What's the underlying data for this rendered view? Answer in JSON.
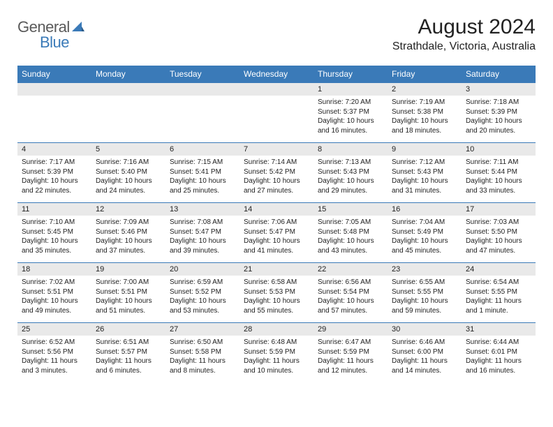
{
  "logo": {
    "part1": "General",
    "part2": "Blue"
  },
  "title": "August 2024",
  "location": "Strathdale, Victoria, Australia",
  "colors": {
    "brand_blue": "#3a7ab8",
    "header_bg": "#3a7ab8",
    "day_number_bg": "#e9e9e9",
    "text": "#222222",
    "logo_gray": "#5a5a5a"
  },
  "day_names": [
    "Sunday",
    "Monday",
    "Tuesday",
    "Wednesday",
    "Thursday",
    "Friday",
    "Saturday"
  ],
  "weeks": [
    [
      null,
      null,
      null,
      null,
      {
        "d": "1",
        "sr": "7:20 AM",
        "ss": "5:37 PM",
        "dl": "10 hours and 16 minutes."
      },
      {
        "d": "2",
        "sr": "7:19 AM",
        "ss": "5:38 PM",
        "dl": "10 hours and 18 minutes."
      },
      {
        "d": "3",
        "sr": "7:18 AM",
        "ss": "5:39 PM",
        "dl": "10 hours and 20 minutes."
      }
    ],
    [
      {
        "d": "4",
        "sr": "7:17 AM",
        "ss": "5:39 PM",
        "dl": "10 hours and 22 minutes."
      },
      {
        "d": "5",
        "sr": "7:16 AM",
        "ss": "5:40 PM",
        "dl": "10 hours and 24 minutes."
      },
      {
        "d": "6",
        "sr": "7:15 AM",
        "ss": "5:41 PM",
        "dl": "10 hours and 25 minutes."
      },
      {
        "d": "7",
        "sr": "7:14 AM",
        "ss": "5:42 PM",
        "dl": "10 hours and 27 minutes."
      },
      {
        "d": "8",
        "sr": "7:13 AM",
        "ss": "5:43 PM",
        "dl": "10 hours and 29 minutes."
      },
      {
        "d": "9",
        "sr": "7:12 AM",
        "ss": "5:43 PM",
        "dl": "10 hours and 31 minutes."
      },
      {
        "d": "10",
        "sr": "7:11 AM",
        "ss": "5:44 PM",
        "dl": "10 hours and 33 minutes."
      }
    ],
    [
      {
        "d": "11",
        "sr": "7:10 AM",
        "ss": "5:45 PM",
        "dl": "10 hours and 35 minutes."
      },
      {
        "d": "12",
        "sr": "7:09 AM",
        "ss": "5:46 PM",
        "dl": "10 hours and 37 minutes."
      },
      {
        "d": "13",
        "sr": "7:08 AM",
        "ss": "5:47 PM",
        "dl": "10 hours and 39 minutes."
      },
      {
        "d": "14",
        "sr": "7:06 AM",
        "ss": "5:47 PM",
        "dl": "10 hours and 41 minutes."
      },
      {
        "d": "15",
        "sr": "7:05 AM",
        "ss": "5:48 PM",
        "dl": "10 hours and 43 minutes."
      },
      {
        "d": "16",
        "sr": "7:04 AM",
        "ss": "5:49 PM",
        "dl": "10 hours and 45 minutes."
      },
      {
        "d": "17",
        "sr": "7:03 AM",
        "ss": "5:50 PM",
        "dl": "10 hours and 47 minutes."
      }
    ],
    [
      {
        "d": "18",
        "sr": "7:02 AM",
        "ss": "5:51 PM",
        "dl": "10 hours and 49 minutes."
      },
      {
        "d": "19",
        "sr": "7:00 AM",
        "ss": "5:51 PM",
        "dl": "10 hours and 51 minutes."
      },
      {
        "d": "20",
        "sr": "6:59 AM",
        "ss": "5:52 PM",
        "dl": "10 hours and 53 minutes."
      },
      {
        "d": "21",
        "sr": "6:58 AM",
        "ss": "5:53 PM",
        "dl": "10 hours and 55 minutes."
      },
      {
        "d": "22",
        "sr": "6:56 AM",
        "ss": "5:54 PM",
        "dl": "10 hours and 57 minutes."
      },
      {
        "d": "23",
        "sr": "6:55 AM",
        "ss": "5:55 PM",
        "dl": "10 hours and 59 minutes."
      },
      {
        "d": "24",
        "sr": "6:54 AM",
        "ss": "5:55 PM",
        "dl": "11 hours and 1 minute."
      }
    ],
    [
      {
        "d": "25",
        "sr": "6:52 AM",
        "ss": "5:56 PM",
        "dl": "11 hours and 3 minutes."
      },
      {
        "d": "26",
        "sr": "6:51 AM",
        "ss": "5:57 PM",
        "dl": "11 hours and 6 minutes."
      },
      {
        "d": "27",
        "sr": "6:50 AM",
        "ss": "5:58 PM",
        "dl": "11 hours and 8 minutes."
      },
      {
        "d": "28",
        "sr": "6:48 AM",
        "ss": "5:59 PM",
        "dl": "11 hours and 10 minutes."
      },
      {
        "d": "29",
        "sr": "6:47 AM",
        "ss": "5:59 PM",
        "dl": "11 hours and 12 minutes."
      },
      {
        "d": "30",
        "sr": "6:46 AM",
        "ss": "6:00 PM",
        "dl": "11 hours and 14 minutes."
      },
      {
        "d": "31",
        "sr": "6:44 AM",
        "ss": "6:01 PM",
        "dl": "11 hours and 16 minutes."
      }
    ]
  ],
  "labels": {
    "sunrise": "Sunrise: ",
    "sunset": "Sunset: ",
    "daylight": "Daylight: "
  }
}
